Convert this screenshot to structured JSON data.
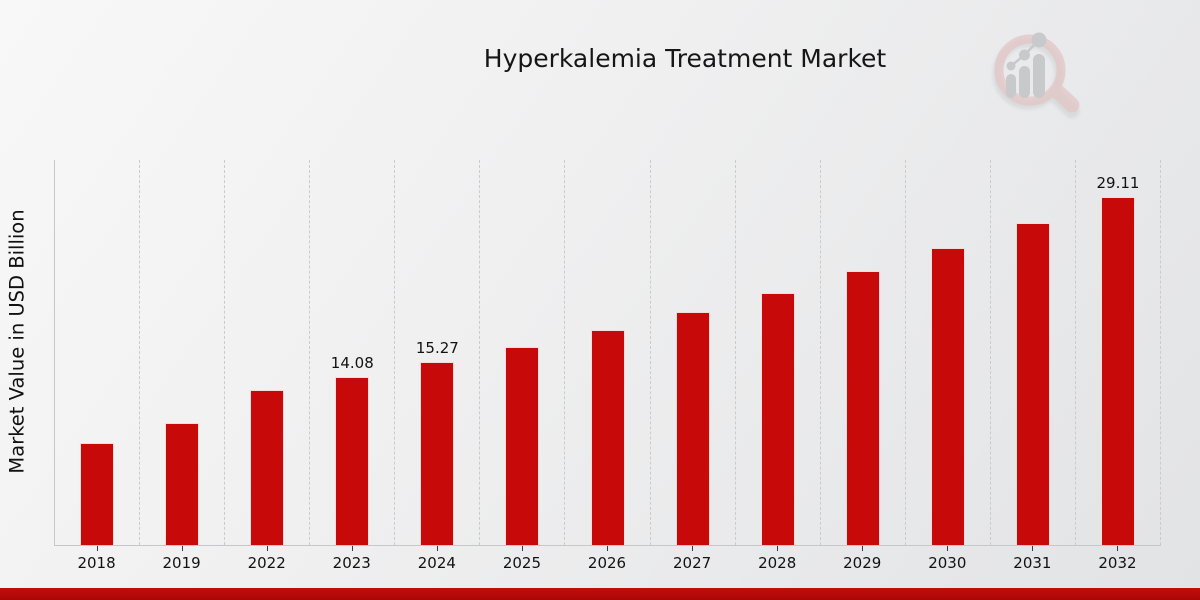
{
  "header": {
    "title": "Hyperkalemia Treatment Market"
  },
  "branding": {
    "logo_name": "market-research-magnifier-logo"
  },
  "chart_data": {
    "type": "bar",
    "title": "Hyperkalemia Treatment Market",
    "xlabel": "",
    "ylabel": "Market Value in USD Billion",
    "categories": [
      "2018",
      "2019",
      "2022",
      "2023",
      "2024",
      "2025",
      "2026",
      "2027",
      "2028",
      "2029",
      "2030",
      "2031",
      "2032"
    ],
    "values": [
      8.5,
      10.2,
      13.0,
      14.08,
      15.27,
      16.6,
      17.95,
      19.45,
      21.1,
      22.9,
      24.85,
      26.9,
      29.11
    ],
    "bar_labels": [
      "",
      "",
      "",
      "14.08",
      "15.27",
      "",
      "",
      "",
      "",
      "",
      "",
      "",
      "29.11"
    ],
    "ylim": [
      0,
      32.2
    ],
    "grid": "vertical-dashed",
    "legend_position": "none",
    "bar_color": "#c70909"
  },
  "colors": {
    "bar": "#c70909",
    "accent_strip": "#b00a0a",
    "background_start": "#f8f8f8",
    "background_end": "#e2e3e5",
    "gridline": "#cbcbcc",
    "spine": "#c6c7c9",
    "text": "#141414",
    "logo_pink": "#e3c6c6",
    "logo_gray": "#c7c9cb"
  }
}
